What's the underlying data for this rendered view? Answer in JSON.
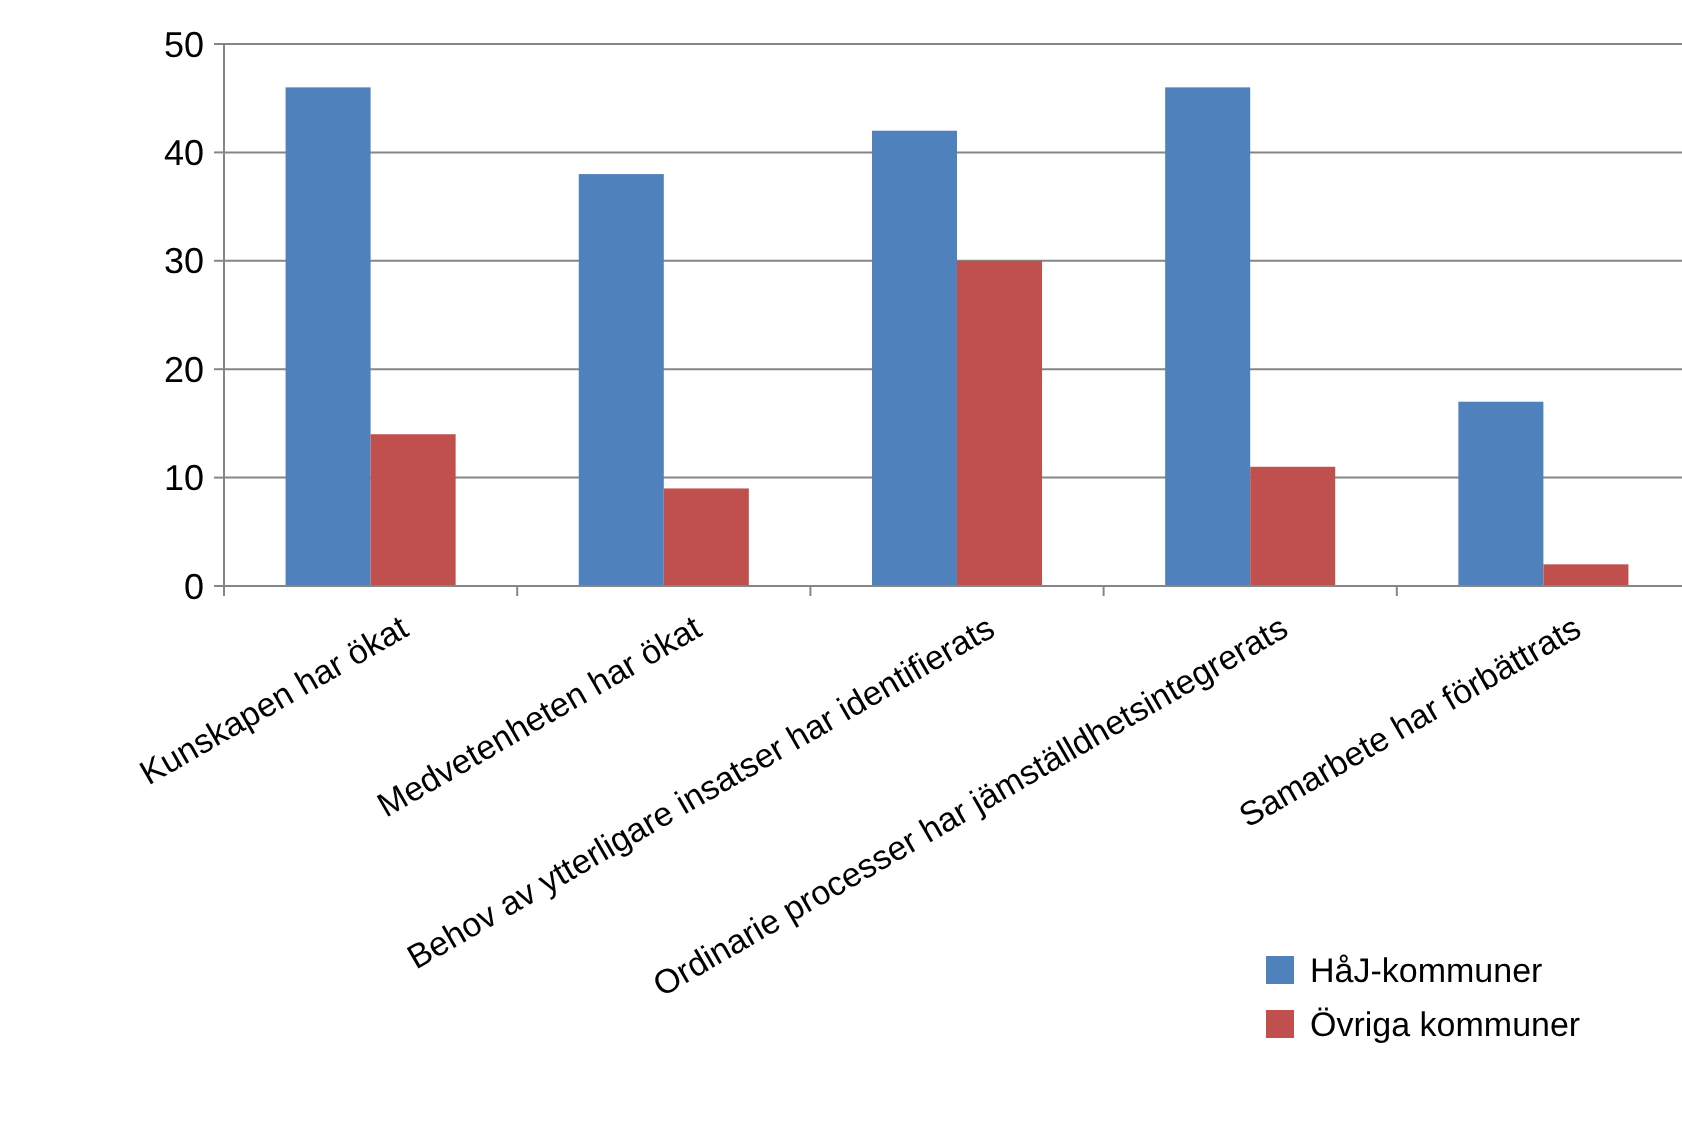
{
  "chart_data": {
    "type": "bar",
    "categories": [
      "Kunskapen har ökat",
      "Medvetenheten har ökat",
      "Behov av ytterligare insatser har identifierats",
      "Ordinarie processer har jämställdhetsintegrerats",
      "Samarbete har förbättrats"
    ],
    "series": [
      {
        "name": "HåJ-kommuner",
        "color": "#4f81bd",
        "values": [
          46,
          38,
          42,
          46,
          17
        ]
      },
      {
        "name": "Övriga kommuner",
        "color": "#c0504d",
        "values": [
          14,
          9,
          30,
          11,
          2
        ]
      }
    ],
    "ylim": [
      0,
      50
    ],
    "yticks": [
      0,
      10,
      20,
      30,
      40,
      50
    ],
    "grid": "y",
    "legend": "bottom right"
  }
}
